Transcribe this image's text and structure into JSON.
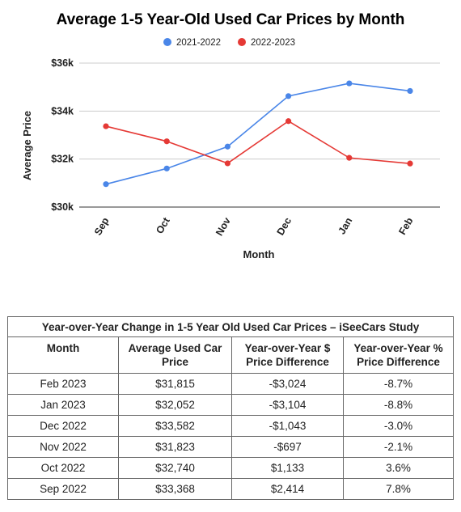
{
  "chart_data": {
    "type": "line",
    "title": "Average 1-5 Year-Old Used Car Prices by Month",
    "xlabel": "Month",
    "ylabel": "Average Price",
    "categories": [
      "Sep",
      "Oct",
      "Nov",
      "Dec",
      "Jan",
      "Feb"
    ],
    "ylim": [
      30000,
      36000
    ],
    "yticks": [
      30000,
      32000,
      34000,
      36000
    ],
    "ytick_labels": [
      "$30k",
      "$32k",
      "$34k",
      "$36k"
    ],
    "legend_position": "top",
    "grid": true,
    "series": [
      {
        "name": "2021-2022",
        "color": "#4a86e8",
        "values": [
          30954,
          31607,
          32520,
          34625,
          35156,
          34839
        ]
      },
      {
        "name": "2022-2023",
        "color": "#e53935",
        "values": [
          33368,
          32740,
          31823,
          33582,
          32052,
          31815
        ]
      }
    ]
  },
  "table": {
    "caption": "Year-over-Year Change in 1-5 Year Old Used Car Prices – iSeeCars Study",
    "headers": [
      "Month",
      "Average Used Car Price",
      "Year-over-Year $ Price Difference",
      "Year-over-Year % Price Difference"
    ],
    "rows": [
      [
        "Feb 2023",
        "$31,815",
        "-$3,024",
        "-8.7%"
      ],
      [
        "Jan 2023",
        "$32,052",
        "-$3,104",
        "-8.8%"
      ],
      [
        "Dec 2022",
        "$33,582",
        "-$1,043",
        "-3.0%"
      ],
      [
        "Nov 2022",
        "$31,823",
        "-$697",
        "-2.1%"
      ],
      [
        "Oct 2022",
        "$32,740",
        "$1,133",
        "3.6%"
      ],
      [
        "Sep 2022",
        "$33,368",
        "$2,414",
        "7.8%"
      ]
    ]
  }
}
